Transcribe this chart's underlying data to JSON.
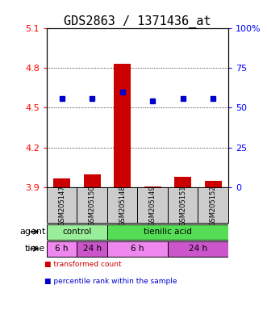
{
  "title": "GDS2863 / 1371436_at",
  "samples": [
    "GSM205147",
    "GSM205150",
    "GSM205148",
    "GSM205149",
    "GSM205151",
    "GSM205152"
  ],
  "bar_values": [
    3.97,
    4.0,
    4.83,
    3.91,
    3.98,
    3.95
  ],
  "bar_baseline": 3.9,
  "dot_values": [
    4.57,
    4.57,
    4.62,
    4.55,
    4.57,
    4.57
  ],
  "ylim_left": [
    3.9,
    5.1
  ],
  "ylim_right": [
    0,
    100
  ],
  "yticks_left": [
    3.9,
    4.2,
    4.5,
    4.8,
    5.1
  ],
  "yticks_right": [
    0,
    25,
    50,
    75,
    100
  ],
  "ytick_labels_left": [
    "3.9",
    "4.2",
    "4.5",
    "4.8",
    "5.1"
  ],
  "ytick_labels_right": [
    "0",
    "25",
    "50",
    "75",
    "100%"
  ],
  "hlines": [
    4.2,
    4.5,
    4.8
  ],
  "bar_color": "#cc0000",
  "dot_color": "#0000cc",
  "agent_groups": [
    {
      "label": "control",
      "start": 0,
      "end": 2,
      "color": "#99ee99"
    },
    {
      "label": "tienilic acid",
      "start": 2,
      "end": 6,
      "color": "#55dd55"
    }
  ],
  "time_groups": [
    {
      "label": "6 h",
      "start": 0,
      "end": 1,
      "color": "#ee88ee"
    },
    {
      "label": "24 h",
      "start": 1,
      "end": 2,
      "color": "#cc55cc"
    },
    {
      "label": "6 h",
      "start": 2,
      "end": 4,
      "color": "#ee88ee"
    },
    {
      "label": "24 h",
      "start": 4,
      "end": 6,
      "color": "#cc55cc"
    }
  ],
  "legend_items": [
    {
      "label": "transformed count",
      "color": "#cc0000"
    },
    {
      "label": "percentile rank within the sample",
      "color": "#0000cc"
    }
  ],
  "title_fontsize": 11,
  "tick_fontsize": 8,
  "sample_fontsize": 6,
  "bar_width": 0.55,
  "background_color": "#ffffff"
}
